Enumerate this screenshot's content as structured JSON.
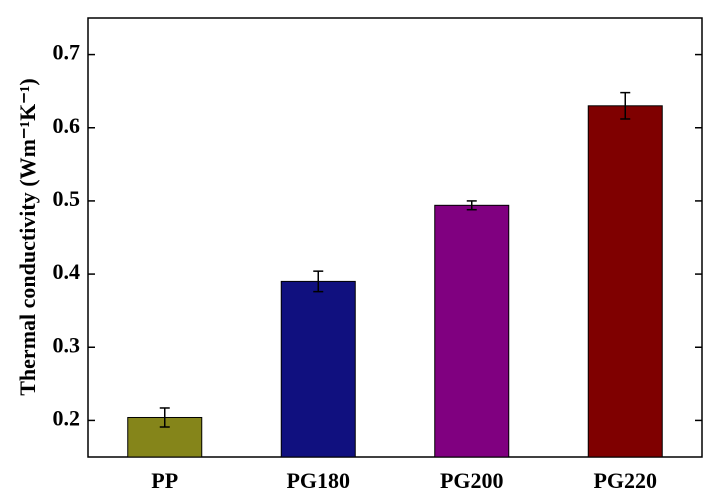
{
  "chart_data": {
    "type": "bar",
    "ylabel": "Thermal conductivity (Wm⁻¹K⁻¹)",
    "categories": [
      "PP",
      "PG180",
      "PG200",
      "PG220"
    ],
    "values": [
      0.204,
      0.39,
      0.494,
      0.63
    ],
    "errors": [
      0.013,
      0.014,
      0.006,
      0.018
    ],
    "colors": [
      "#85851a",
      "#10107f",
      "#800080",
      "#7f0000"
    ],
    "ylim": [
      0.15,
      0.75
    ],
    "yticks": [
      0.2,
      0.3,
      0.4,
      0.5,
      0.6,
      0.7
    ]
  }
}
